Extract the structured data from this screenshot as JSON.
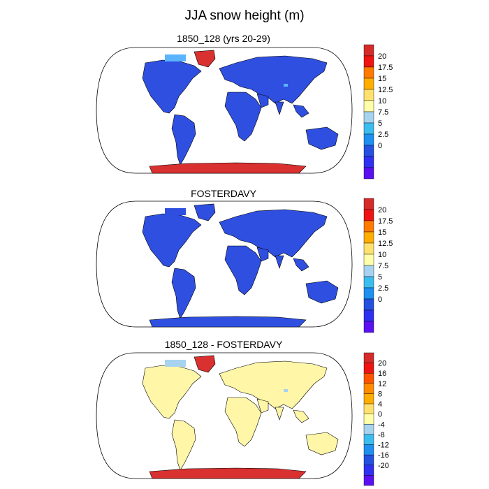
{
  "title": "JJA snow height (m)",
  "panels": [
    {
      "title": "1850_128 (yrs 20-29)",
      "fill": "#2f4fe0",
      "antarctica": "#d93030",
      "greenland": "#d93030",
      "accent": "#5ab4ff",
      "colorbar": {
        "labels": [
          "20",
          "17.5",
          "15",
          "12.5",
          "10",
          "7.5",
          "5",
          "2.5",
          "0"
        ],
        "colors": [
          "#d42b2b",
          "#ee1414",
          "#ff7a00",
          "#ffad00",
          "#ffe170",
          "#ffffaa",
          "#a7d3f0",
          "#3cbdf0",
          "#1f8ff0",
          "#2550e0",
          "#3030f0",
          "#5a10f0"
        ]
      }
    },
    {
      "title": "FOSTERDAVY",
      "fill": "#2f4fe0",
      "antarctica": "#2f4fe0",
      "greenland": "#2f4fe0",
      "accent": "#2f4fe0",
      "colorbar": {
        "labels": [
          "20",
          "17.5",
          "15",
          "12.5",
          "10",
          "7.5",
          "5",
          "2.5",
          "0"
        ],
        "colors": [
          "#d42b2b",
          "#ee1414",
          "#ff7a00",
          "#ffad00",
          "#ffe170",
          "#ffffaa",
          "#a7d3f0",
          "#3cbdf0",
          "#1f8ff0",
          "#2550e0",
          "#3030f0",
          "#5a10f0"
        ]
      }
    },
    {
      "title": "1850_128 - FOSTERDAVY",
      "fill": "#fff6a8",
      "antarctica": "#d93030",
      "greenland": "#d93030",
      "accent": "#a7d3f0",
      "colorbar": {
        "labels": [
          "20",
          "16",
          "12",
          "8",
          "4",
          "0",
          "-4",
          "-8",
          "-12",
          "-16",
          "-20"
        ],
        "colors": [
          "#d42b2b",
          "#ee1414",
          "#ff5500",
          "#ff8c00",
          "#ffad00",
          "#ffe170",
          "#ffffaa",
          "#a7d3f0",
          "#3cbdf0",
          "#1f8ff0",
          "#2550e0",
          "#3030f0",
          "#5a10f0"
        ]
      }
    }
  ]
}
